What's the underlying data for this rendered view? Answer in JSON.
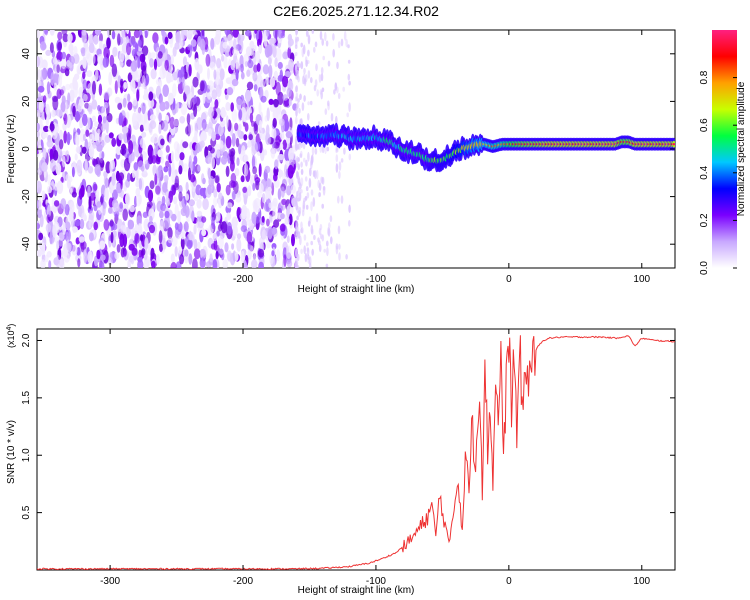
{
  "title": "C2E6.2025.271.12.34.R02",
  "chart_data": [
    {
      "type": "heatmap",
      "title": "C2E6.2025.271.12.34.R02",
      "xlabel": "Height of straight line (km)",
      "ylabel": "Frequency (Hz)",
      "xlim": [
        -355,
        125
      ],
      "ylim": [
        -50,
        50
      ],
      "xticks": [
        -300,
        -200,
        -100,
        0,
        100
      ],
      "xtick_labels": [
        "-300",
        "-200",
        "-100",
        "0",
        "100"
      ],
      "yticks": [
        -40,
        -20,
        0,
        20,
        40
      ],
      "ytick_labels": [
        "-40",
        "-20",
        "0",
        "20",
        "40"
      ],
      "noise_region_x": [
        -355,
        -160
      ],
      "signal_track": {
        "x": [
          -158,
          -145,
          -130,
          -115,
          -100,
          -90,
          -80,
          -70,
          -62,
          -55,
          -48,
          -42,
          -36,
          -30,
          -24,
          -18,
          -12,
          -5,
          0,
          10,
          20,
          30,
          40,
          50,
          60,
          70,
          80,
          85,
          90,
          95,
          100,
          110,
          125
        ],
        "y": [
          6,
          5,
          6,
          4,
          5,
          3,
          0,
          -2,
          -4,
          -5,
          -4,
          -2,
          0,
          1,
          2,
          2,
          1,
          2,
          2,
          2,
          2,
          2,
          2,
          2,
          2,
          2,
          2,
          3,
          3,
          2,
          2,
          2,
          2
        ],
        "amplitude": [
          0.35,
          0.38,
          0.4,
          0.42,
          0.45,
          0.5,
          0.5,
          0.55,
          0.55,
          0.6,
          0.6,
          0.62,
          0.65,
          0.7,
          0.72,
          0.75,
          0.78,
          0.8,
          0.85,
          0.9,
          0.92,
          0.95,
          0.95,
          0.95,
          0.95,
          0.95,
          0.95,
          0.9,
          0.9,
          0.95,
          0.95,
          0.95,
          0.95
        ]
      },
      "colorbar": {
        "label": "Normalized spectral amplitude",
        "range": [
          0.0,
          1.0
        ],
        "ticks": [
          0.0,
          0.2,
          0.4,
          0.6,
          0.8
        ],
        "tick_labels": [
          "0.0",
          "0.2",
          "0.4",
          "0.6",
          "0.8"
        ],
        "colors": [
          "#ffffff",
          "#c8a8ff",
          "#7a00ff",
          "#0000ff",
          "#00c8ff",
          "#00ff40",
          "#c8ff00",
          "#ffa000",
          "#ff0000",
          "#ff2080"
        ]
      }
    },
    {
      "type": "line",
      "xlabel": "Height of straight line (km)",
      "ylabel": "SNR (10 * v/v)",
      "y_multiplier_label": "(x10",
      "y_multiplier_exp": "4",
      "y_multiplier_close": ")",
      "xlim": [
        -355,
        125
      ],
      "ylim": [
        0,
        2.1
      ],
      "xticks": [
        -300,
        -200,
        -100,
        0,
        100
      ],
      "xtick_labels": [
        "-300",
        "-200",
        "-100",
        "0",
        "100"
      ],
      "yticks": [
        0.5,
        1.0,
        1.5,
        2.0
      ],
      "ytick_labels": [
        "0.5",
        "1.0",
        "1.5",
        "2.0"
      ],
      "color": "#ee3333",
      "series": [
        {
          "name": "SNR",
          "x": [
            -355,
            -300,
            -250,
            -200,
            -160,
            -140,
            -120,
            -105,
            -95,
            -85,
            -75,
            -68,
            -62,
            -58,
            -55,
            -52,
            -48,
            -45,
            -42,
            -38,
            -35,
            -32,
            -30,
            -28,
            -25,
            -22,
            -20,
            -18,
            -16,
            -14,
            -12,
            -10,
            -8,
            -6,
            -4,
            -2,
            0,
            2,
            4,
            6,
            8,
            10,
            14,
            18,
            22,
            26,
            30,
            40,
            50,
            60,
            70,
            80,
            90,
            95,
            100,
            110,
            125
          ],
          "y": [
            0.01,
            0.01,
            0.01,
            0.01,
            0.01,
            0.015,
            0.03,
            0.06,
            0.1,
            0.15,
            0.25,
            0.35,
            0.45,
            0.55,
            0.3,
            0.65,
            0.4,
            0.2,
            0.5,
            0.8,
            0.35,
            1.1,
            0.6,
            1.3,
            0.9,
            1.7,
            0.7,
            1.95,
            1.0,
            1.5,
            0.7,
            1.8,
            1.2,
            1.95,
            0.9,
            1.6,
            2.08,
            1.4,
            1.9,
            1.1,
            1.95,
            1.5,
            1.7,
            1.85,
            1.95,
            2.0,
            2.02,
            2.03,
            2.03,
            2.03,
            2.03,
            2.02,
            2.04,
            1.95,
            2.02,
            2.0,
            1.99
          ]
        }
      ]
    }
  ]
}
